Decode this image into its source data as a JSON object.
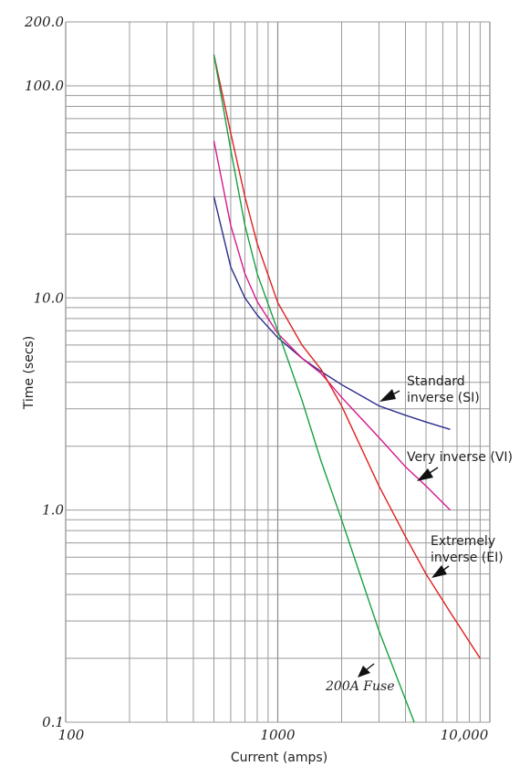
{
  "chart_data": {
    "type": "line",
    "title": "",
    "xlabel": "Current (amps)",
    "ylabel": "Time (secs)",
    "x_scale": "log",
    "y_scale": "log",
    "xlim": [
      100,
      10000
    ],
    "ylim": [
      0.1,
      200
    ],
    "grid": true,
    "x_ticks": [
      {
        "value": 100,
        "label": "100"
      },
      {
        "value": 1000,
        "label": "1000"
      },
      {
        "value": 10000,
        "label": "10,000"
      }
    ],
    "y_ticks": [
      {
        "value": 0.1,
        "label": "0.1"
      },
      {
        "value": 1,
        "label": "1.0"
      },
      {
        "value": 10,
        "label": "10.0"
      },
      {
        "value": 100,
        "label": "100.0"
      },
      {
        "value": 200,
        "label": "200.0"
      }
    ],
    "series": [
      {
        "name": "Standard inverse (SI)",
        "color": "#2b2b8c",
        "x": [
          500,
          600,
          700,
          800,
          1000,
          1300,
          1600,
          2000,
          3000,
          4000,
          5000,
          6500
        ],
        "y": [
          30,
          14,
          10,
          8.3,
          6.5,
          5.2,
          4.5,
          3.9,
          3.1,
          2.8,
          2.6,
          2.4
        ]
      },
      {
        "name": "Very inverse (VI)",
        "color": "#d6198c",
        "x": [
          500,
          600,
          700,
          800,
          1000,
          1300,
          1600,
          2000,
          3000,
          4000,
          5000,
          6500
        ],
        "y": [
          55,
          22,
          13,
          9.6,
          6.8,
          5.2,
          4.4,
          3.4,
          2.2,
          1.6,
          1.3,
          1.0
        ]
      },
      {
        "name": "Extremely inverse (EI)",
        "color": "#e02020",
        "x": [
          500,
          600,
          700,
          800,
          1000,
          1300,
          1600,
          2000,
          3000,
          4000,
          5000,
          6500,
          9000
        ],
        "y": [
          140,
          60,
          30,
          18,
          9.5,
          6.0,
          4.6,
          3.1,
          1.3,
          0.75,
          0.5,
          0.33,
          0.2
        ]
      },
      {
        "name": "200A Fuse",
        "color": "#16a040",
        "x": [
          500,
          600,
          700,
          800,
          1000,
          1300,
          1600,
          2000,
          3000,
          4400
        ],
        "y": [
          140,
          50,
          22,
          13,
          7.0,
          3.3,
          1.7,
          0.9,
          0.27,
          0.1
        ]
      }
    ],
    "annotations": [
      {
        "lines": [
          "Standard",
          "inverse (SI)"
        ],
        "series": "Standard inverse (SI)"
      },
      {
        "lines": [
          "Very inverse (VI)"
        ],
        "series": "Very inverse (VI)"
      },
      {
        "lines": [
          "Extremely",
          "inverse (EI)"
        ],
        "series": "Extremely inverse (EI)"
      },
      {
        "lines": [
          "200A Fuse"
        ],
        "series": "200A Fuse"
      }
    ]
  }
}
